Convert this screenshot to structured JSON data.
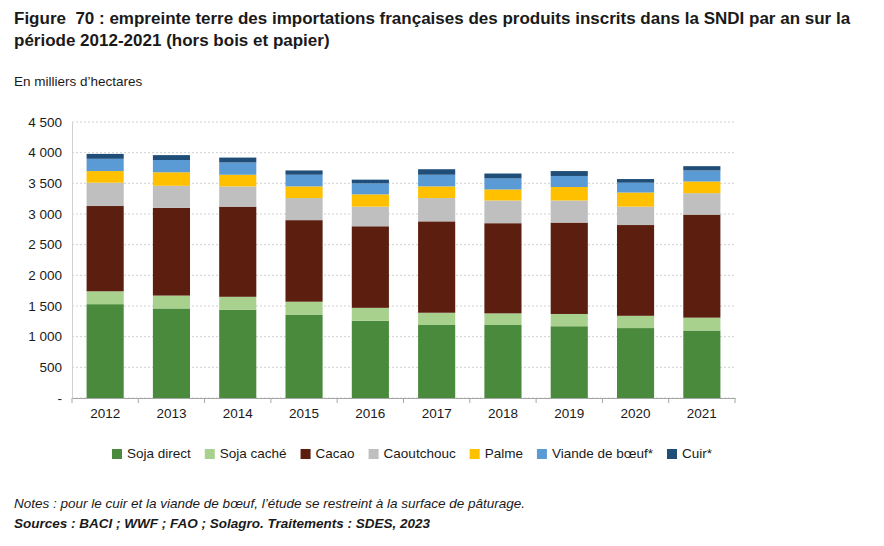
{
  "chart_data": {
    "type": "bar",
    "title": "Figure  70 : empreinte terre des importations françaises des produits inscrits dans la SNDI par an sur la période 2012-2021 (hors bois et papier)",
    "subtitle": "En milliers d’hectares",
    "notes": "Notes : pour le cuir et la viande de bœuf, l’étude se restreint à la surface de pâturage.",
    "source": "Sources : BACI ; WWF ; FAO ; Solagro. Traitements : SDES, 2023",
    "categories": [
      "2012",
      "2013",
      "2014",
      "2015",
      "2016",
      "2017",
      "2018",
      "2019",
      "2020",
      "2021"
    ],
    "series": [
      {
        "name": "Soja direct",
        "color": "#4a8a3c",
        "values": [
          1530,
          1460,
          1440,
          1360,
          1260,
          1190,
          1190,
          1170,
          1140,
          1100
        ]
      },
      {
        "name": "Soja caché",
        "color": "#a9d18e",
        "values": [
          210,
          210,
          210,
          210,
          210,
          200,
          190,
          200,
          200,
          210
        ]
      },
      {
        "name": "Cacao",
        "color": "#5c1f0f",
        "values": [
          1390,
          1430,
          1470,
          1330,
          1330,
          1490,
          1470,
          1490,
          1480,
          1680
        ]
      },
      {
        "name": "Caoutchouc",
        "color": "#bfbfbf",
        "values": [
          380,
          360,
          330,
          360,
          320,
          380,
          370,
          360,
          300,
          350
        ]
      },
      {
        "name": "Palme",
        "color": "#ffc000",
        "values": [
          190,
          220,
          190,
          190,
          200,
          190,
          180,
          220,
          230,
          190
        ]
      },
      {
        "name": "Viande de bœuf*",
        "color": "#5b9bd5",
        "values": [
          200,
          200,
          200,
          190,
          180,
          190,
          180,
          180,
          160,
          180
        ]
      },
      {
        "name": "Cuir*",
        "color": "#1f4e79",
        "values": [
          80,
          80,
          80,
          70,
          60,
          90,
          80,
          80,
          60,
          70
        ]
      }
    ],
    "ylim": [
      0,
      4500
    ],
    "yticks": [
      {
        "value": 0,
        "label": "-"
      },
      500,
      {
        "value": 1000,
        "label": "1 000"
      },
      {
        "value": 1500,
        "label": "1 500"
      },
      {
        "value": 2000,
        "label": "2 000"
      },
      {
        "value": 2500,
        "label": "2 500"
      },
      {
        "value": 3000,
        "label": "3 000"
      },
      {
        "value": 3500,
        "label": "3 500"
      },
      {
        "value": 4000,
        "label": "4 000"
      },
      {
        "value": 4500,
        "label": "4 500"
      }
    ],
    "stacked": true,
    "grid": true,
    "legend": "bottom"
  }
}
